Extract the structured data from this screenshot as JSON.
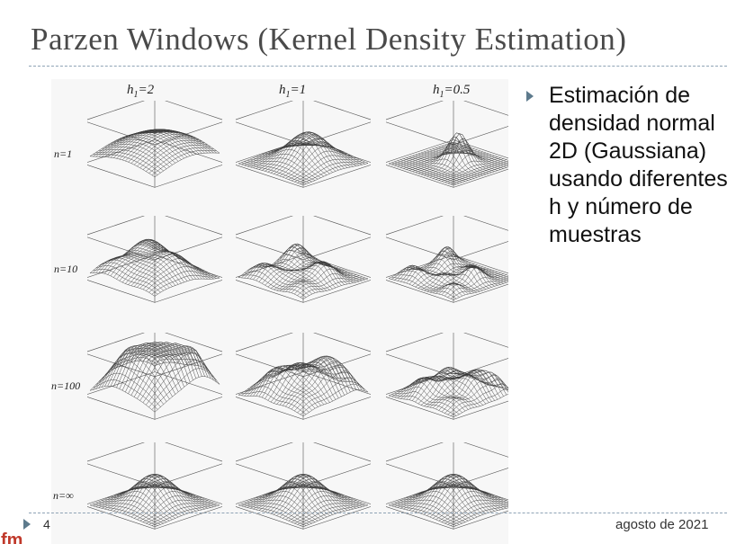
{
  "slide": {
    "title": "Parzen Windows (Kernel Density Estimation)",
    "bullet": "Estimación de densidad normal 2D (Gaussiana) usando diferentes h y número de muestras",
    "page_number": "4",
    "date": "agosto de 2021",
    "logo_text": "fm"
  },
  "figure": {
    "columns": [
      {
        "label": "h",
        "sub": "1",
        "value": "=2"
      },
      {
        "label": "h",
        "sub": "1",
        "value": "=1"
      },
      {
        "label": "h",
        "sub": "1",
        "value": "=0.5"
      }
    ],
    "rows": [
      {
        "label": "n=1"
      },
      {
        "label": "n=10"
      },
      {
        "label": "n=100"
      },
      {
        "label": "n=∞"
      }
    ]
  },
  "colors": {
    "title": "#4a4a4a",
    "bullet_arrow": "#5d7a8c",
    "dashed_rule": "#8fa3b5",
    "logo": "#c0392b"
  }
}
